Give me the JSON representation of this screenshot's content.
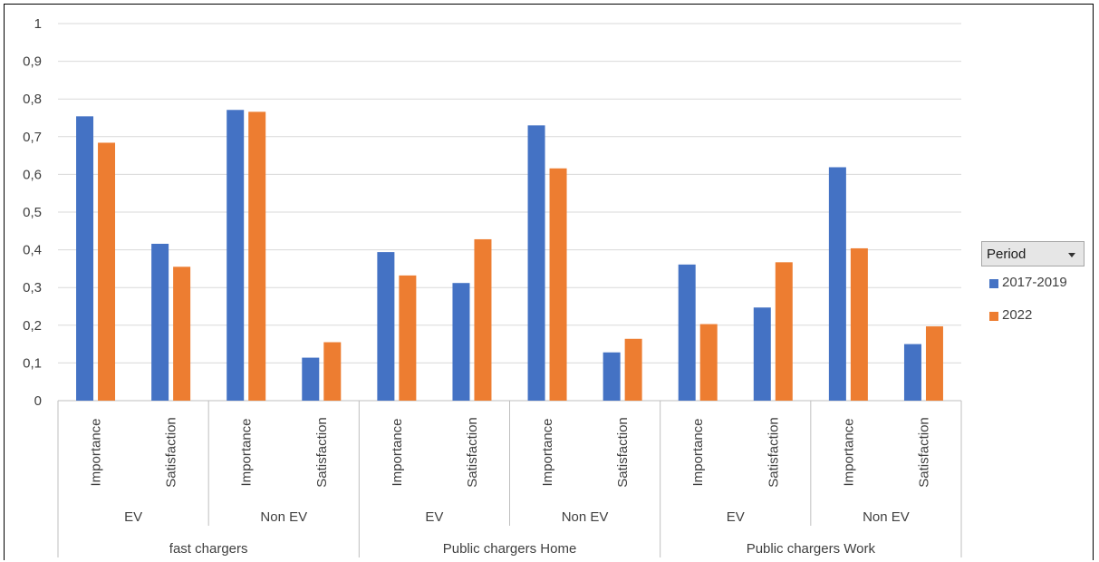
{
  "chart_data": {
    "type": "bar",
    "title": "",
    "xlabel": "",
    "ylabel": "",
    "ylim": [
      0,
      1
    ],
    "y_ticks": [
      "0",
      "0,1",
      "0,2",
      "0,3",
      "0,4",
      "0,5",
      "0,6",
      "0,7",
      "0,8",
      "0,9",
      "1"
    ],
    "grid": true,
    "categories": [
      "fast chargers / EV / Importance",
      "fast chargers / EV / Satisfaction",
      "fast chargers / Non EV / Importance",
      "fast chargers / Non EV / Satisfaction",
      "Public chargers Home / EV / Importance",
      "Public chargers Home / EV / Satisfaction",
      "Public chargers Home / Non EV / Importance",
      "Public chargers Home / Non EV / Satisfaction",
      "Public chargers Work / EV / Importance",
      "Public chargers Work / EV / Satisfaction",
      "Public chargers Work / Non EV / Importance",
      "Public chargers Work / Non EV / Satisfaction"
    ],
    "axis_labels": {
      "level1": [
        "Importance",
        "Satisfaction",
        "Importance",
        "Satisfaction",
        "Importance",
        "Satisfaction",
        "Importance",
        "Satisfaction",
        "Importance",
        "Satisfaction",
        "Importance",
        "Satisfaction"
      ],
      "level2": [
        "EV",
        "Non EV",
        "EV",
        "Non EV",
        "EV",
        "Non EV"
      ],
      "level3": [
        "fast chargers",
        "Public chargers Home",
        "Public chargers Work"
      ]
    },
    "series": [
      {
        "name": "2017-2019",
        "color": "#4472c4",
        "values": [
          0.754,
          0.416,
          0.771,
          0.114,
          0.394,
          0.312,
          0.73,
          0.128,
          0.361,
          0.247,
          0.619,
          0.15
        ]
      },
      {
        "name": "2022",
        "color": "#ed7d31",
        "values": [
          0.684,
          0.355,
          0.766,
          0.155,
          0.332,
          0.428,
          0.616,
          0.164,
          0.203,
          0.367,
          0.404,
          0.197
        ]
      }
    ],
    "legend": {
      "position": "right",
      "header": "Period"
    }
  }
}
